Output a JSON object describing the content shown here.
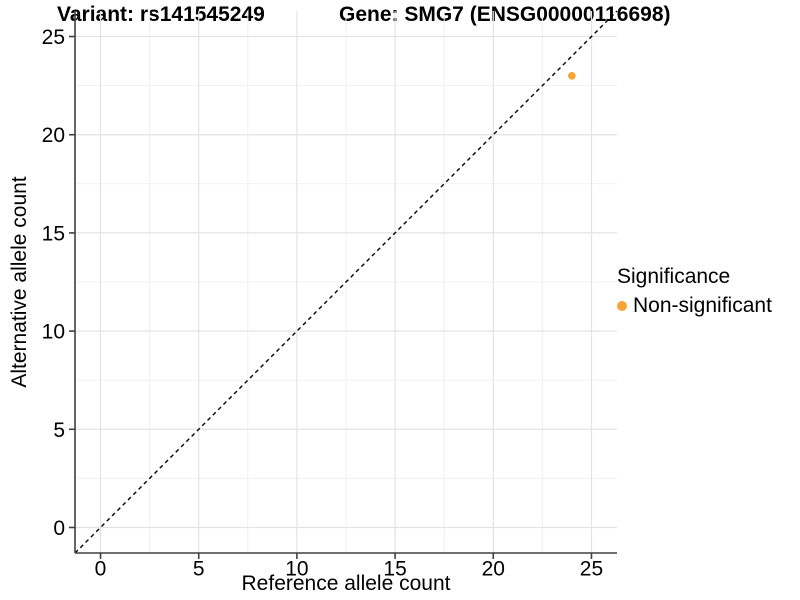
{
  "chart_data": {
    "type": "scatter",
    "titles": {
      "variant": "Variant: rs141545249",
      "gene": "Gene: SMG7 (ENSG00000116698)"
    },
    "xlabel": "Reference allele count",
    "ylabel": "Alternative allele count",
    "xlim": [
      -1.3,
      26.3
    ],
    "ylim": [
      -1.3,
      26.3
    ],
    "x_ticks": [
      0,
      5,
      10,
      15,
      20,
      25
    ],
    "y_ticks": [
      0,
      5,
      10,
      15,
      20,
      25
    ],
    "x_minor": [
      2.5,
      7.5,
      12.5,
      17.5,
      22.5
    ],
    "y_minor": [
      2.5,
      7.5,
      12.5,
      17.5,
      22.5
    ],
    "grid": "major+minor",
    "identity_line": {
      "style": "dashed",
      "color": "#000000",
      "equation": "y = x"
    },
    "series": [
      {
        "name": "Non-significant",
        "color": "#F9A235",
        "points": [
          {
            "x": 24,
            "y": 23
          }
        ]
      }
    ],
    "legend": {
      "title": "Significance",
      "position": "right",
      "items": [
        {
          "label": "Non-significant",
          "color": "#F9A235"
        }
      ]
    }
  },
  "colors": {
    "background": "#FFFFFF",
    "grid_major": "#E3E3E3",
    "grid_minor": "#F0F0F0",
    "axis": "#404040",
    "point": "#F9A235",
    "text": "#000000"
  }
}
